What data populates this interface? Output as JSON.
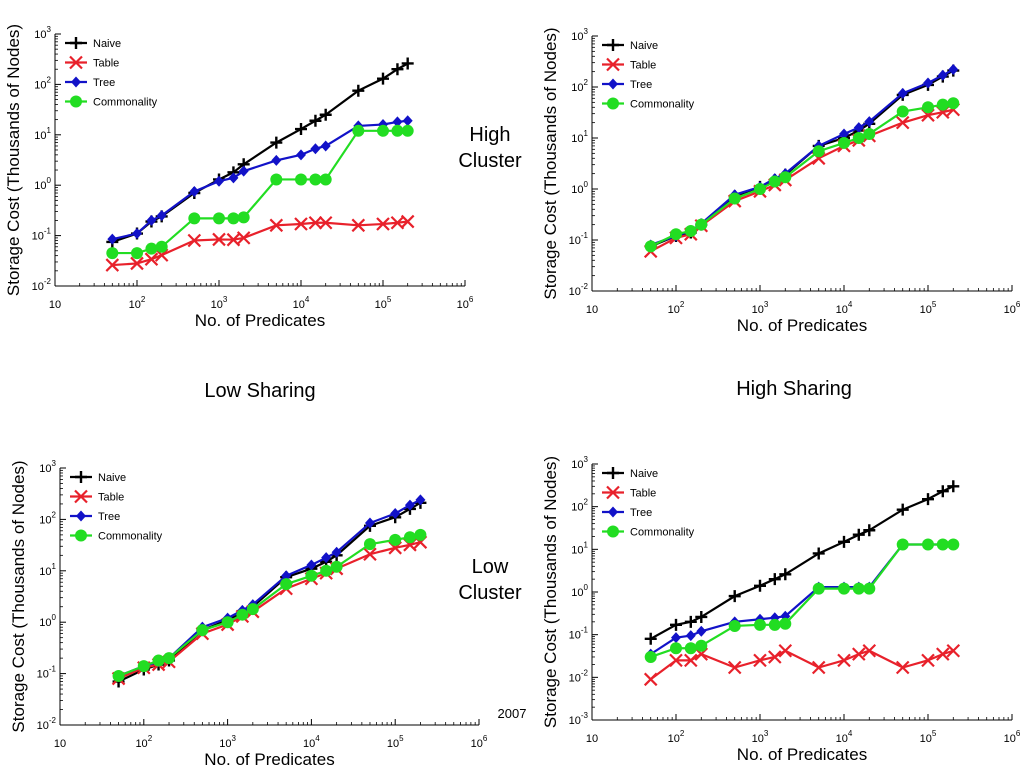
{
  "labels": {
    "high_cluster": "High\nCluster",
    "low_cluster": "Low\nCluster",
    "low_sharing": "Low Sharing",
    "high_sharing": "High Sharing",
    "year": "2007"
  },
  "colors": {
    "naive": "#000000",
    "table": "#e8212b",
    "tree": "#1212c8",
    "commonality": "#22dd22"
  },
  "chart_data": [
    {
      "id": "top-left",
      "type": "line",
      "xlabel": "No. of Predicates",
      "ylabel": "Storage Cost (Thousands of Nodes)",
      "xlim": [
        10,
        1000000
      ],
      "ylim": [
        0.01,
        1000
      ],
      "xscale": "log",
      "yscale": "log",
      "xticks": [
        "10",
        "10^2",
        "10^3",
        "10^4",
        "10^5",
        "10^6"
      ],
      "yticks": [
        "10^-2",
        "10^-1",
        "10^0",
        "10^1",
        "10^2",
        "10^3"
      ],
      "legend_position": "top-left",
      "series": [
        {
          "name": "Naive",
          "key": "naive",
          "marker": "plus",
          "x": [
            50,
            100,
            150,
            200,
            500,
            1000,
            1500,
            2000,
            5000,
            10000,
            15000,
            20000,
            50000,
            100000,
            150000,
            200000
          ],
          "y": [
            0.075,
            0.11,
            0.19,
            0.24,
            0.7,
            1.3,
            1.8,
            2.6,
            7,
            13,
            19,
            25,
            75,
            130,
            200,
            260
          ]
        },
        {
          "name": "Table",
          "key": "table",
          "marker": "x",
          "x": [
            50,
            100,
            150,
            200,
            500,
            1000,
            1500,
            2000,
            5000,
            10000,
            15000,
            20000,
            50000,
            100000,
            150000,
            200000
          ],
          "y": [
            0.026,
            0.028,
            0.034,
            0.041,
            0.08,
            0.084,
            0.083,
            0.09,
            0.16,
            0.17,
            0.18,
            0.18,
            0.16,
            0.17,
            0.18,
            0.19
          ]
        },
        {
          "name": "Tree",
          "key": "tree",
          "marker": "diamond",
          "x": [
            50,
            100,
            150,
            200,
            500,
            1000,
            1500,
            2000,
            5000,
            10000,
            15000,
            20000,
            50000,
            100000,
            150000,
            200000
          ],
          "y": [
            0.085,
            0.11,
            0.2,
            0.25,
            0.75,
            1.2,
            1.4,
            1.9,
            3.1,
            4,
            5.3,
            6,
            15,
            16,
            18,
            19
          ]
        },
        {
          "name": "Commonality",
          "key": "commonality",
          "marker": "circle",
          "x": [
            50,
            100,
            150,
            200,
            500,
            1000,
            1500,
            2000,
            5000,
            10000,
            15000,
            20000,
            50000,
            100000,
            150000,
            200000
          ],
          "y": [
            0.045,
            0.045,
            0.055,
            0.06,
            0.22,
            0.22,
            0.22,
            0.23,
            1.3,
            1.3,
            1.3,
            1.3,
            12,
            12,
            12,
            12
          ]
        }
      ]
    },
    {
      "id": "top-right",
      "type": "line",
      "xlabel": "No. of Predicates",
      "ylabel": "Storage Cost (Thousands of Nodes)",
      "xlim": [
        10,
        1000000
      ],
      "ylim": [
        0.01,
        1000
      ],
      "xscale": "log",
      "yscale": "log",
      "xticks": [
        "10",
        "10^2",
        "10^3",
        "10^4",
        "10^5",
        "10^6"
      ],
      "yticks": [
        "10^-2",
        "10^-1",
        "10^0",
        "10^1",
        "10^2",
        "10^3"
      ],
      "legend_position": "top-left",
      "series": [
        {
          "name": "Naive",
          "key": "naive",
          "marker": "plus",
          "x": [
            50,
            100,
            150,
            200,
            500,
            1000,
            1500,
            2000,
            5000,
            10000,
            15000,
            20000,
            50000,
            100000,
            150000,
            200000
          ],
          "y": [
            0.075,
            0.12,
            0.14,
            0.2,
            0.72,
            1.1,
            1.5,
            1.9,
            7,
            10,
            14,
            19,
            70,
            110,
            160,
            210
          ]
        },
        {
          "name": "Table",
          "key": "table",
          "marker": "x",
          "x": [
            50,
            100,
            150,
            200,
            500,
            1000,
            1500,
            2000,
            5000,
            10000,
            15000,
            20000,
            50000,
            100000,
            150000,
            200000
          ],
          "y": [
            0.06,
            0.11,
            0.13,
            0.19,
            0.58,
            0.9,
            1.2,
            1.5,
            4,
            7,
            9,
            11,
            20,
            28,
            32,
            36
          ]
        },
        {
          "name": "Tree",
          "key": "tree",
          "marker": "diamond",
          "x": [
            50,
            100,
            150,
            200,
            500,
            1000,
            1500,
            2000,
            5000,
            10000,
            15000,
            20000,
            50000,
            100000,
            150000,
            200000
          ],
          "y": [
            0.08,
            0.12,
            0.15,
            0.21,
            0.77,
            1.1,
            1.6,
            2,
            7,
            12,
            16,
            21,
            75,
            120,
            170,
            220
          ]
        },
        {
          "name": "Commonality",
          "key": "commonality",
          "marker": "circle",
          "x": [
            50,
            100,
            150,
            200,
            500,
            1000,
            1500,
            2000,
            5000,
            10000,
            15000,
            20000,
            50000,
            100000,
            150000,
            200000
          ],
          "y": [
            0.075,
            0.13,
            0.15,
            0.2,
            0.65,
            1,
            1.4,
            1.7,
            5.5,
            8,
            10,
            12,
            33,
            40,
            45,
            48
          ]
        }
      ]
    },
    {
      "id": "bottom-left",
      "type": "line",
      "xlabel": "No. of Predicates",
      "ylabel": "Storage Cost (Thousands of Nodes)",
      "xlim": [
        10,
        1000000
      ],
      "ylim": [
        0.01,
        1000
      ],
      "xscale": "log",
      "yscale": "log",
      "xticks": [
        "10",
        "10^2",
        "10^3",
        "10^4",
        "10^5",
        "10^6"
      ],
      "yticks": [
        "10^-2",
        "10^-1",
        "10^0",
        "10^1",
        "10^2",
        "10^3"
      ],
      "legend_position": "top-left",
      "series": [
        {
          "name": "Naive",
          "key": "naive",
          "marker": "plus",
          "x": [
            50,
            100,
            150,
            200,
            500,
            1000,
            1500,
            2000,
            5000,
            10000,
            15000,
            20000,
            50000,
            100000,
            150000,
            200000
          ],
          "y": [
            0.07,
            0.12,
            0.15,
            0.18,
            0.7,
            1.1,
            1.5,
            2,
            7.5,
            11,
            15,
            20,
            75,
            110,
            160,
            210
          ]
        },
        {
          "name": "Table",
          "key": "table",
          "marker": "x",
          "x": [
            50,
            100,
            150,
            200,
            500,
            1000,
            1500,
            2000,
            5000,
            10000,
            15000,
            20000,
            50000,
            100000,
            150000,
            200000
          ],
          "y": [
            0.08,
            0.13,
            0.15,
            0.17,
            0.6,
            0.9,
            1.3,
            1.6,
            4.5,
            7,
            9,
            11,
            21,
            28,
            32,
            36
          ]
        },
        {
          "name": "Tree",
          "key": "tree",
          "marker": "diamond",
          "x": [
            50,
            100,
            150,
            200,
            500,
            1000,
            1500,
            2000,
            5000,
            10000,
            15000,
            20000,
            50000,
            100000,
            150000,
            200000
          ],
          "y": [
            0.09,
            0.14,
            0.17,
            0.2,
            0.8,
            1.2,
            1.7,
            2.2,
            8,
            13,
            18,
            23,
            85,
            130,
            190,
            240
          ]
        },
        {
          "name": "Commonality",
          "key": "commonality",
          "marker": "circle",
          "x": [
            50,
            100,
            150,
            200,
            500,
            1000,
            1500,
            2000,
            5000,
            10000,
            15000,
            20000,
            50000,
            100000,
            150000,
            200000
          ],
          "y": [
            0.09,
            0.14,
            0.18,
            0.2,
            0.7,
            1,
            1.4,
            1.8,
            5.5,
            8,
            10,
            12,
            33,
            40,
            45,
            50
          ]
        }
      ]
    },
    {
      "id": "bottom-right",
      "type": "line",
      "xlabel": "No. of Predicates",
      "ylabel": "Storage Cost (Thousands of Nodes)",
      "xlim": [
        10,
        1000000
      ],
      "ylim": [
        0.001,
        1000
      ],
      "xscale": "log",
      "yscale": "log",
      "xticks": [
        "10",
        "10^2",
        "10^3",
        "10^4",
        "10^5",
        "10^6"
      ],
      "yticks": [
        "10^-3",
        "10^-2",
        "10^-1",
        "10^0",
        "10^1",
        "10^2",
        "10^3"
      ],
      "legend_position": "top-left",
      "series": [
        {
          "name": "Naive",
          "key": "naive",
          "marker": "plus",
          "x": [
            50,
            100,
            150,
            200,
            500,
            1000,
            1500,
            2000,
            5000,
            10000,
            15000,
            20000,
            50000,
            100000,
            150000,
            200000
          ],
          "y": [
            0.08,
            0.17,
            0.2,
            0.26,
            0.8,
            1.4,
            2,
            2.6,
            8,
            15,
            22,
            28,
            85,
            150,
            230,
            300
          ]
        },
        {
          "name": "Table",
          "key": "table",
          "marker": "x",
          "x": [
            50,
            100,
            150,
            200,
            500,
            1000,
            1500,
            2000,
            5000,
            10000,
            15000,
            20000,
            50000,
            100000,
            150000,
            200000
          ],
          "y": [
            0.009,
            0.025,
            0.025,
            0.035,
            0.017,
            0.025,
            0.03,
            0.042,
            0.017,
            0.025,
            0.035,
            0.042,
            0.017,
            0.025,
            0.035,
            0.042
          ]
        },
        {
          "name": "Tree",
          "key": "tree",
          "marker": "diamond",
          "x": [
            50,
            100,
            150,
            200,
            500,
            1000,
            1500,
            2000,
            5000,
            10000,
            15000,
            20000,
            50000,
            100000,
            150000,
            200000
          ],
          "y": [
            0.035,
            0.085,
            0.095,
            0.12,
            0.2,
            0.23,
            0.25,
            0.27,
            1.3,
            1.3,
            1.3,
            1.3,
            13,
            13,
            13,
            13
          ]
        },
        {
          "name": "Commonality",
          "key": "commonality",
          "marker": "circle",
          "x": [
            50,
            100,
            150,
            200,
            500,
            1000,
            1500,
            2000,
            5000,
            10000,
            15000,
            20000,
            50000,
            100000,
            150000,
            200000
          ],
          "y": [
            0.03,
            0.048,
            0.048,
            0.055,
            0.16,
            0.17,
            0.17,
            0.18,
            1.2,
            1.2,
            1.2,
            1.2,
            13,
            13,
            13,
            13
          ]
        }
      ]
    }
  ]
}
